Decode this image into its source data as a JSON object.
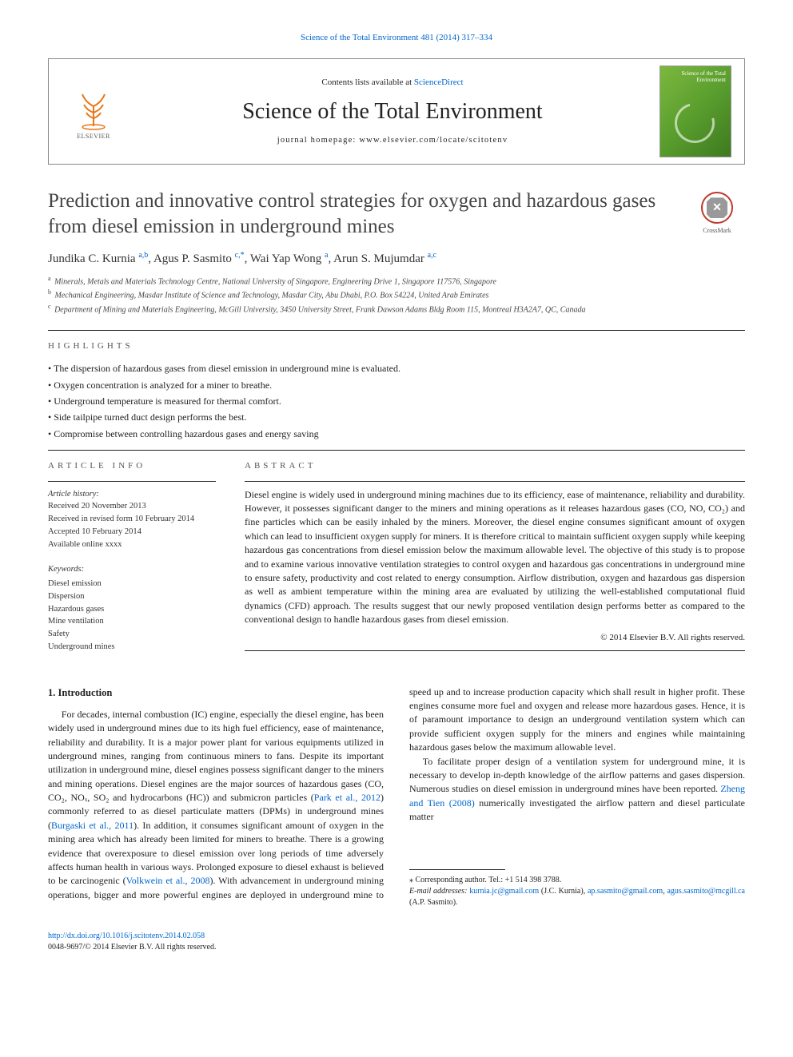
{
  "header": {
    "citation": "Science of the Total Environment 481 (2014) 317–334",
    "contents_prefix": "Contents lists available at ",
    "contents_link": "ScienceDirect",
    "journal": "Science of the Total Environment",
    "homepage_prefix": "journal homepage: ",
    "homepage_url": "www.elsevier.com/locate/scitotenv",
    "publisher_name": "ELSEVIER",
    "cover_label": "Science of the Total Environment"
  },
  "crossmark": {
    "label": "CrossMark"
  },
  "title": "Prediction and innovative control strategies for oxygen and hazardous gases from diesel emission in underground mines",
  "authors_html": "Jundika C. Kurnia <sup>a,b</sup>, Agus P. Sasmito <sup>c,*</sup>, Wai Yap Wong <sup>a</sup>, Arun S. Mujumdar <sup>a,c</sup>",
  "affiliations": [
    {
      "sup": "a",
      "text": "Minerals, Metals and Materials Technology Centre, National University of Singapore, Engineering Drive 1, Singapore 117576, Singapore"
    },
    {
      "sup": "b",
      "text": "Mechanical Engineering, Masdar Institute of Science and Technology, Masdar City, Abu Dhabi, P.O. Box 54224, United Arab Emirates"
    },
    {
      "sup": "c",
      "text": "Department of Mining and Materials Engineering, McGill University, 3450 University Street, Frank Dawson Adams Bldg Room 115, Montreal H3A2A7, QC, Canada"
    }
  ],
  "highlights": {
    "label": "HIGHLIGHTS",
    "items": [
      "The dispersion of hazardous gases from diesel emission in underground mine is evaluated.",
      "Oxygen concentration is analyzed for a miner to breathe.",
      "Underground temperature is measured for thermal comfort.",
      "Side tailpipe turned duct design performs the best.",
      "Compromise between controlling hazardous gases and energy saving"
    ]
  },
  "article_info": {
    "label": "ARTICLE INFO",
    "history_head": "Article history:",
    "history": [
      "Received 20 November 2013",
      "Received in revised form 10 February 2014",
      "Accepted 10 February 2014",
      "Available online xxxx"
    ],
    "keywords_head": "Keywords:",
    "keywords": [
      "Diesel emission",
      "Dispersion",
      "Hazardous gases",
      "Mine ventilation",
      "Safety",
      "Underground mines"
    ]
  },
  "abstract": {
    "label": "ABSTRACT",
    "text": "Diesel engine is widely used in underground mining machines due to its efficiency, ease of maintenance, reliability and durability. However, it possesses significant danger to the miners and mining operations as it releases hazardous gases (CO, NO, CO₂) and fine particles which can be easily inhaled by the miners. Moreover, the diesel engine consumes significant amount of oxygen which can lead to insufficient oxygen supply for miners. It is therefore critical to maintain sufficient oxygen supply while keeping hazardous gas concentrations from diesel emission below the maximum allowable level. The objective of this study is to propose and to examine various innovative ventilation strategies to control oxygen and hazardous gas concentrations in underground mine to ensure safety, productivity and cost related to energy consumption. Airflow distribution, oxygen and hazardous gas dispersion as well as ambient temperature within the mining area are evaluated by utilizing the well-established computational fluid dynamics (CFD) approach. The results suggest that our newly proposed ventilation design performs better as compared to the conventional design to handle hazardous gases from diesel emission.",
    "copyright": "© 2014 Elsevier B.V. All rights reserved."
  },
  "body": {
    "section_heading": "1. Introduction",
    "para1_a": "For decades, internal combustion (IC) engine, especially the diesel engine, has been widely used in underground mines due to its high fuel efficiency, ease of maintenance, reliability and durability. It is a major power plant for various equipments utilized in underground mines, ranging from continuous miners to fans. Despite its important utilization in underground mine, diesel engines possess significant danger to the miners and mining operations. Diesel engines are the major sources of hazardous gases (CO, CO₂, NOₓ, SO₂ and hydrocarbons (HC)) and submicron particles (",
    "para1_cite1": "Park et al., 2012",
    "para1_b": ") commonly referred to as diesel particulate matters (DPMs) in underground mines (",
    "para1_cite2": "Burgaski et al., 2011",
    "para1_c": "). In addition, it ",
    "para2_a": "consumes significant amount of oxygen in the mining area which has already been limited for miners to breathe. There is a growing evidence that overexposure to diesel emission over long periods of time adversely affects human health in various ways. Prolonged exposure to diesel exhaust is believed to be carcinogenic (",
    "para2_cite1": "Volkwein et al., 2008",
    "para2_b": "). With advancement in underground mining operations, bigger and more powerful engines are deployed in underground mine to speed up and to increase production capacity which shall result in higher profit. These engines consume more fuel and oxygen and release more hazardous gases. Hence, it is of paramount importance to design an underground ventilation system which can provide sufficient oxygen supply for the miners and engines while maintaining hazardous gases below the maximum allowable level.",
    "para3_a": "To facilitate proper design of a ventilation system for underground mine, it is necessary to develop in-depth knowledge of the airflow patterns and gases dispersion. Numerous studies on diesel emission in underground mines have been reported. ",
    "para3_cite1": "Zheng and Tien (2008)",
    "para3_b": " numerically investigated the airflow pattern and diesel particulate matter"
  },
  "footnotes": {
    "corr_label": "⁎  Corresponding author. Tel.: +1 514 398 3788.",
    "email_label": "E-mail addresses:",
    "email1": "kurnia.jc@gmail.com",
    "email1_who": " (J.C. Kurnia), ",
    "email2": "ap.sasmito@gmail.com",
    "email2_sep": ", ",
    "email3": "agus.sasmito@mcgill.ca",
    "email3_who": " (A.P. Sasmito)."
  },
  "footer": {
    "doi": "http://dx.doi.org/10.1016/j.scitotenv.2014.02.058",
    "issn_line": "0048-9697/© 2014 Elsevier B.V. All rights reserved."
  }
}
